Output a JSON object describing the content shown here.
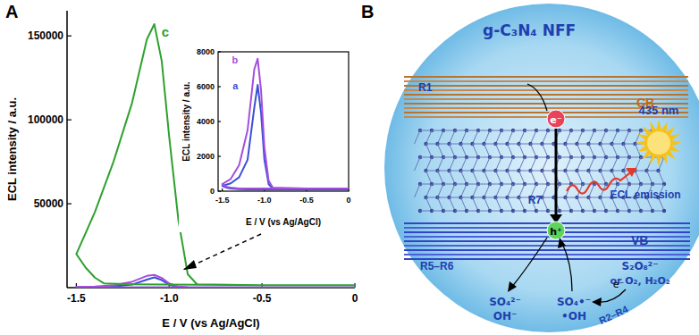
{
  "panels": [
    "A",
    "B"
  ],
  "chart_data": [
    {
      "type": "line",
      "x_label": "E / V (vs Ag/AgCl)",
      "y_label": "ECL intensity / a.u.",
      "xlim": [
        -1.55,
        0
      ],
      "ylim": [
        0,
        165000
      ],
      "xticks": [
        -1.5,
        {
          "value": -1,
          "label": "-1.0"
        },
        -0.5,
        0
      ],
      "yticks": [
        50000,
        100000,
        150000
      ],
      "series": [
        {
          "color": "#3b4fd8",
          "x": [
            0,
            -0.5,
            -0.9,
            -0.95,
            -1.0,
            -1.04,
            -1.08,
            -1.12,
            -1.2,
            -1.3,
            -1.4,
            -1.5,
            -1.45,
            -1.4,
            -1.3,
            -1.2,
            -1.0,
            -0.5,
            0
          ],
          "values": [
            100,
            100,
            150,
            400,
            1800,
            4500,
            6100,
            4800,
            1800,
            800,
            450,
            300,
            200,
            150,
            120,
            100,
            100,
            100,
            100
          ]
        },
        {
          "color": "#a44ee0",
          "x": [
            0,
            -0.5,
            -0.9,
            -0.95,
            -1.0,
            -1.04,
            -1.08,
            -1.12,
            -1.2,
            -1.3,
            -1.4,
            -1.5,
            -1.45,
            -1.4,
            -1.3,
            -1.2,
            -1.0,
            -0.5,
            0
          ],
          "values": [
            150,
            150,
            200,
            600,
            2500,
            5800,
            7600,
            7000,
            3500,
            1500,
            700,
            400,
            250,
            200,
            150,
            150,
            150,
            150,
            150
          ]
        },
        {
          "name": "c",
          "color": "#2ea12e",
          "x": [
            0,
            -0.5,
            -0.85,
            -0.9,
            -0.95,
            -1.0,
            -1.04,
            -1.08,
            -1.12,
            -1.2,
            -1.3,
            -1.4,
            -1.5,
            -1.45,
            -1.4,
            -1.35,
            -1.2,
            -1.0,
            -0.5,
            0
          ],
          "values": [
            1500,
            1500,
            2000,
            8000,
            40000,
            90000,
            135000,
            157000,
            148000,
            110000,
            75000,
            45000,
            20000,
            12000,
            6000,
            2500,
            2000,
            1800,
            1500,
            1500
          ]
        }
      ]
    },
    {
      "type": "line",
      "x_label": "E / V (vs Ag/AgCl)",
      "y_label": "ECL intensity / a.u.",
      "xlim": [
        -1.55,
        0
      ],
      "ylim": [
        0,
        8000
      ],
      "xticks": [
        -1.5,
        {
          "value": -1,
          "label": "-1.0"
        },
        -0.5,
        0
      ],
      "yticks": [
        0,
        2000,
        4000,
        6000,
        8000
      ],
      "series": [
        {
          "name": "a",
          "color": "#3b4fd8",
          "x": [
            0,
            -0.5,
            -0.9,
            -0.95,
            -1.0,
            -1.04,
            -1.08,
            -1.12,
            -1.2,
            -1.3,
            -1.4,
            -1.5,
            -1.45,
            -1.4,
            -1.3,
            -1.2,
            -1.0,
            -0.5,
            0
          ],
          "values": [
            100,
            100,
            150,
            400,
            1800,
            4500,
            6100,
            4800,
            1800,
            800,
            450,
            300,
            200,
            150,
            120,
            100,
            100,
            100,
            100
          ]
        },
        {
          "name": "b",
          "color": "#a44ee0",
          "x": [
            0,
            -0.5,
            -0.9,
            -0.95,
            -1.0,
            -1.04,
            -1.08,
            -1.12,
            -1.2,
            -1.3,
            -1.4,
            -1.5,
            -1.45,
            -1.4,
            -1.3,
            -1.2,
            -1.0,
            -0.5,
            0
          ],
          "values": [
            150,
            150,
            200,
            600,
            2500,
            5800,
            7600,
            7000,
            3500,
            1500,
            700,
            400,
            250,
            200,
            150,
            150,
            150,
            150,
            150
          ]
        }
      ]
    }
  ],
  "diagram": {
    "title": "g-C₃N₄ NFF",
    "reaction_cb": "R1",
    "electron": "e⁻",
    "cb": "CB",
    "emission_wavelength": "435 nm",
    "reaction_emission": "R7",
    "emission": "ECL emission",
    "hole": "h⁺",
    "vb": "VB",
    "reaction_vb": "R5–R6",
    "product_sulfate": "SO₄²⁻",
    "product_hydroxide": "OH⁻",
    "radical_sulfate": "SO₄•⁻",
    "radical_hydroxyl": "•OH",
    "coreactant": "S₂O₈²⁻",
    "coreactant_alt": "or O₂, H₂O₂",
    "electron_in": "e⁻",
    "reaction_coreactant": "R2–R4"
  }
}
